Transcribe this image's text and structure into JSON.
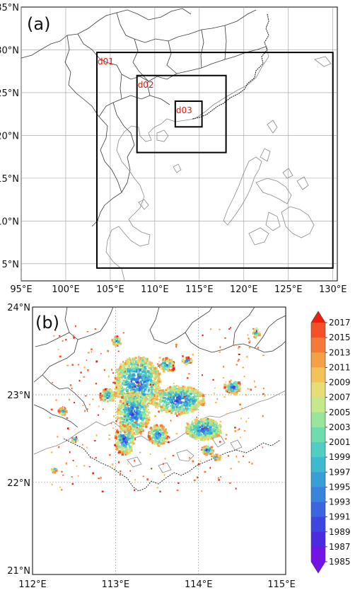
{
  "panel_a": {
    "label": "(a)",
    "lon_ticks": [
      "95°E",
      "100°E",
      "105°E",
      "110°E",
      "115°E",
      "120°E",
      "125°E",
      "130°E"
    ],
    "lat_ticks": [
      "35°N",
      "30°N",
      "25°N",
      "20°N",
      "15°N",
      "10°N",
      "5°N"
    ],
    "extent": {
      "lon_min": 95,
      "lon_max": 130.5,
      "lat_min": 3,
      "lat_max": 35
    },
    "domains": [
      {
        "name": "d01",
        "lon": [
          103.5,
          130
        ],
        "lat": [
          4.5,
          29.7
        ]
      },
      {
        "name": "d02",
        "lon": [
          108,
          118
        ],
        "lat": [
          18,
          27
        ]
      },
      {
        "name": "d03",
        "lon": [
          112.3,
          115.3
        ],
        "lat": [
          21,
          24
        ]
      }
    ],
    "domain_color": "#e3170a"
  },
  "panel_b": {
    "label": "(b)",
    "lon_ticks": [
      "112°E",
      "113°E",
      "114°E",
      "115°E"
    ],
    "lat_ticks": [
      "24°N",
      "23°N",
      "22°N",
      "21°N"
    ],
    "extent": {
      "lon_min": 112,
      "lon_max": 115.05,
      "lat_min": 20.95,
      "lat_max": 24
    }
  },
  "colorbar": {
    "labels": [
      "2017",
      "2015",
      "2013",
      "2011",
      "2009",
      "2007",
      "2005",
      "2003",
      "2001",
      "1999",
      "1997",
      "1995",
      "1993",
      "1991",
      "1989",
      "1987",
      "1985"
    ],
    "colors": [
      "#f01c10",
      "#f4502a",
      "#f47a3a",
      "#f4a046",
      "#f3c258",
      "#e7dd77",
      "#c5e98a",
      "#99e59c",
      "#6fdcb0",
      "#52cdc3",
      "#3fb9cf",
      "#3a9ed6",
      "#3983dd",
      "#3a64e0",
      "#3d46e0",
      "#4c2ae0",
      "#7413e6"
    ]
  }
}
